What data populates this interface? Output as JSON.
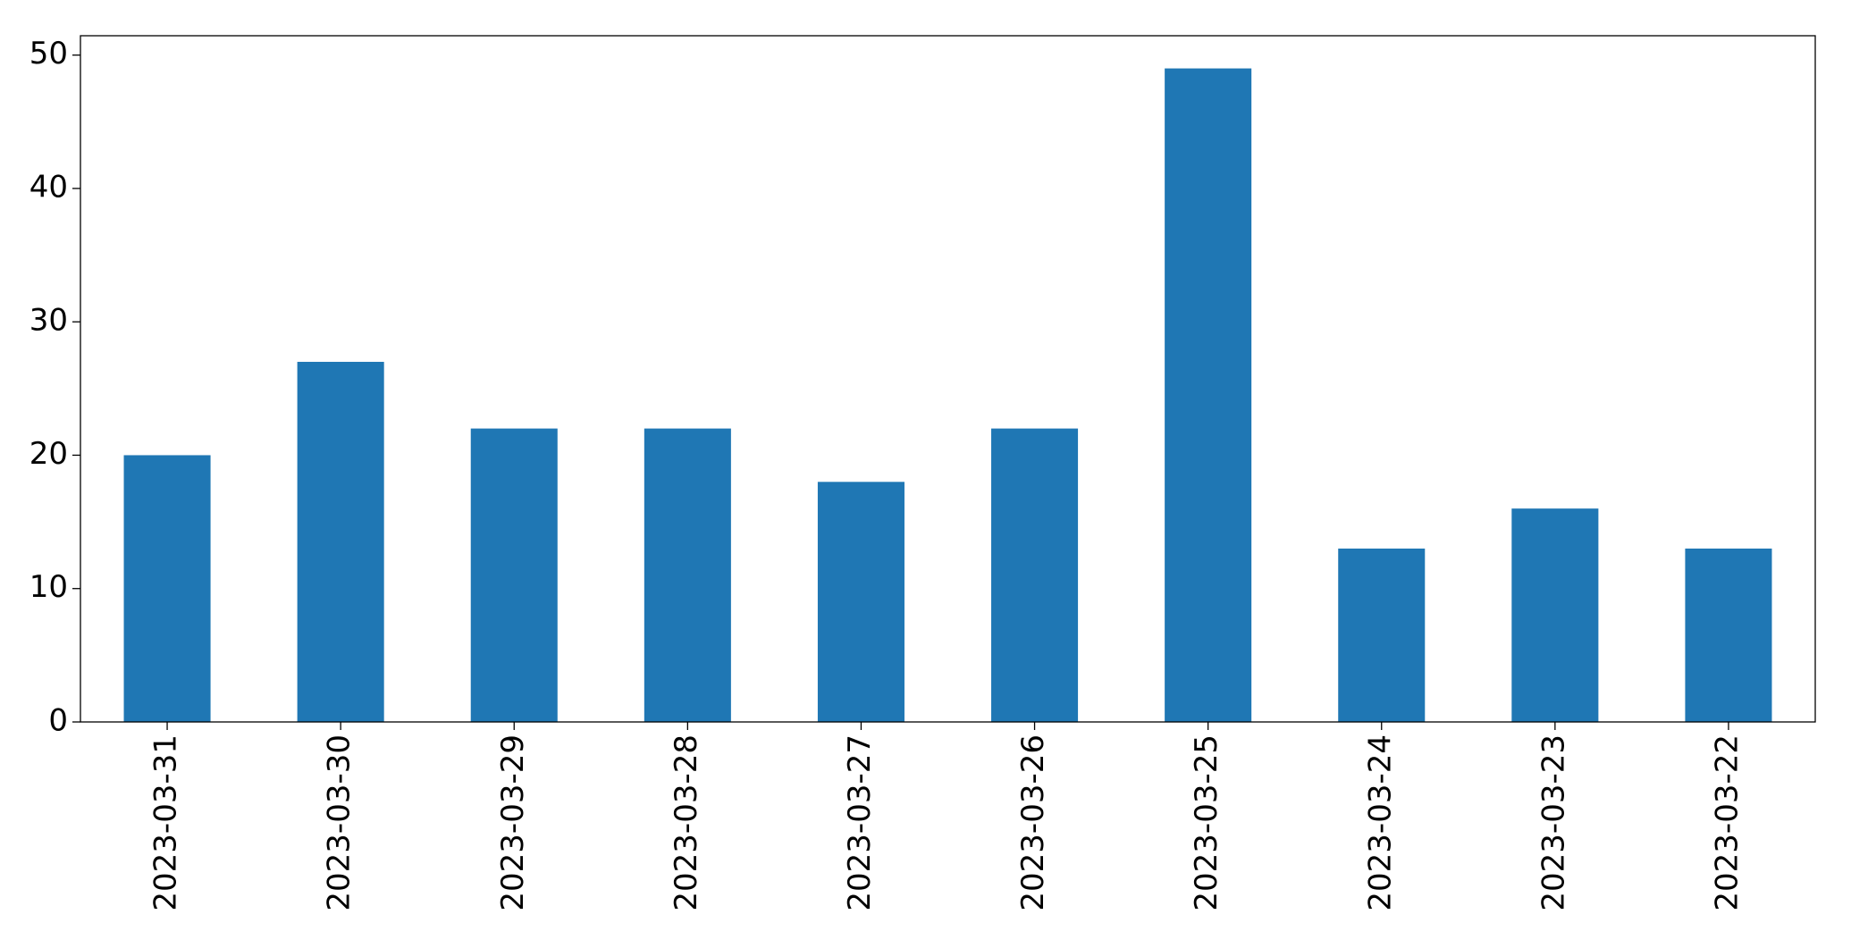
{
  "chart_data": {
    "type": "bar",
    "categories": [
      "2023-03-31",
      "2023-03-30",
      "2023-03-29",
      "2023-03-28",
      "2023-03-27",
      "2023-03-26",
      "2023-03-25",
      "2023-03-24",
      "2023-03-23",
      "2023-03-22"
    ],
    "values": [
      20,
      27,
      22,
      22,
      18,
      22,
      49,
      13,
      16,
      13
    ],
    "color": "#1f77b4",
    "ylim": [
      0,
      51.45
    ],
    "yticks": [
      0,
      10,
      20,
      30,
      40,
      50
    ],
    "grid": false
  }
}
